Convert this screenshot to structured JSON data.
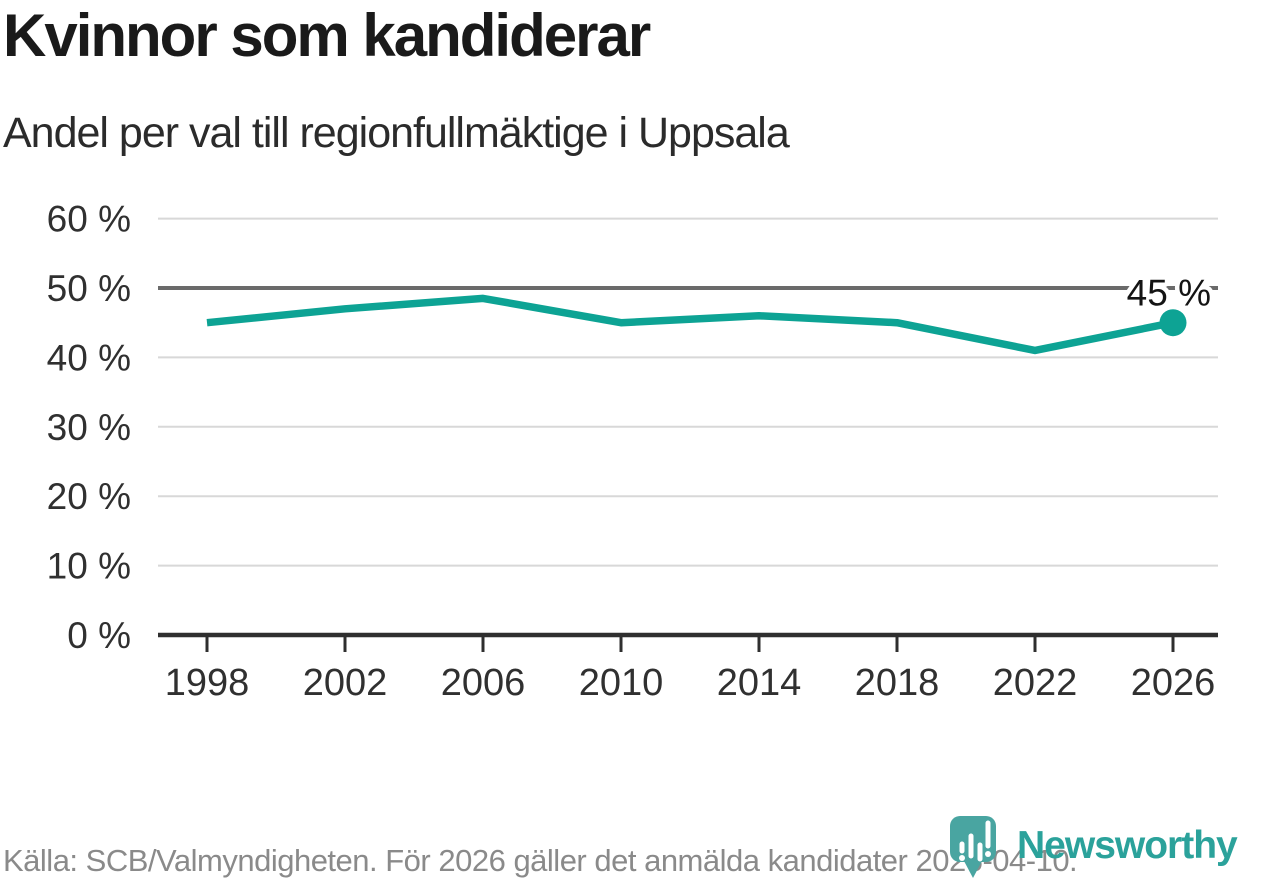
{
  "header": {
    "title": "Kvinnor som kandiderar",
    "subtitle": "Andel per val till regionfullmäktige i Uppsala"
  },
  "chart_data": {
    "type": "line",
    "title": "Kvinnor som kandiderar",
    "subtitle": "Andel per val till regionfullmäktige i Uppsala",
    "categories": [
      "1998",
      "2002",
      "2006",
      "2010",
      "2014",
      "2018",
      "2022",
      "2026"
    ],
    "series": [
      {
        "name": "Andel per val",
        "values": [
          45,
          47,
          48.5,
          45,
          46,
          45,
          41,
          45
        ]
      }
    ],
    "unit": "%",
    "ylim": [
      0,
      60
    ],
    "yticks": [
      {
        "value": 0,
        "label": "0 %"
      },
      {
        "value": 10,
        "label": "10 %"
      },
      {
        "value": 20,
        "label": "20 %"
      },
      {
        "value": 30,
        "label": "30 %"
      },
      {
        "value": 40,
        "label": "40 %"
      },
      {
        "value": 50,
        "label": "50 %"
      },
      {
        "value": 60,
        "label": "60 %"
      }
    ],
    "reference_line": 50,
    "end_label": "45 %",
    "grid": true,
    "legend": "none"
  },
  "footer": {
    "source": "Källa: SCB/Valmyndigheten. För 2026 gäller det anmälda kandidater 2026-04-10.",
    "brand": "Newsworthy"
  },
  "colors": {
    "line": "#0da394",
    "grid": "#d8d8d8",
    "reference": "#6a6a6a",
    "axis": "#2f2f2f",
    "tick_label": "#303030",
    "annotation": "#141414",
    "footer_text": "#8a8a8a",
    "brand_teal": "#2ba29b",
    "logo_icon_teal": "#49a5a1"
  }
}
